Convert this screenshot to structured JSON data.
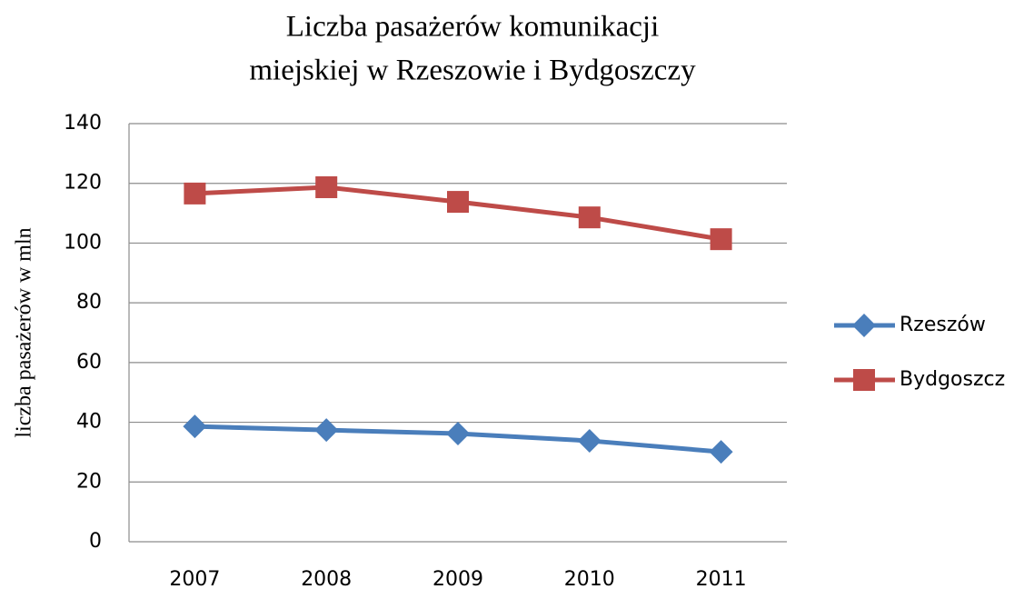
{
  "chart_data": {
    "type": "line",
    "title": [
      "Liczba pasażerów komunikacji",
      "miejskiej w Rzeszowie i Bydgoszczy"
    ],
    "ylabel": "liczba pasażerów w mln",
    "categories": [
      "2007",
      "2008",
      "2009",
      "2010",
      "2011"
    ],
    "series": [
      {
        "name": "Rzeszów",
        "color": "#4a7ebb",
        "marker": "diamond",
        "values": [
          38.6,
          37.4,
          36.2,
          33.8,
          30.1
        ]
      },
      {
        "name": "Bydgoszcz",
        "color": "#be4b48",
        "marker": "square",
        "values": [
          116.6,
          118.7,
          113.8,
          108.6,
          101.3
        ]
      }
    ],
    "ylim": [
      0,
      140
    ],
    "yticks": [
      0,
      20,
      40,
      60,
      80,
      100,
      120,
      140
    ],
    "grid": true,
    "legend": "right"
  }
}
